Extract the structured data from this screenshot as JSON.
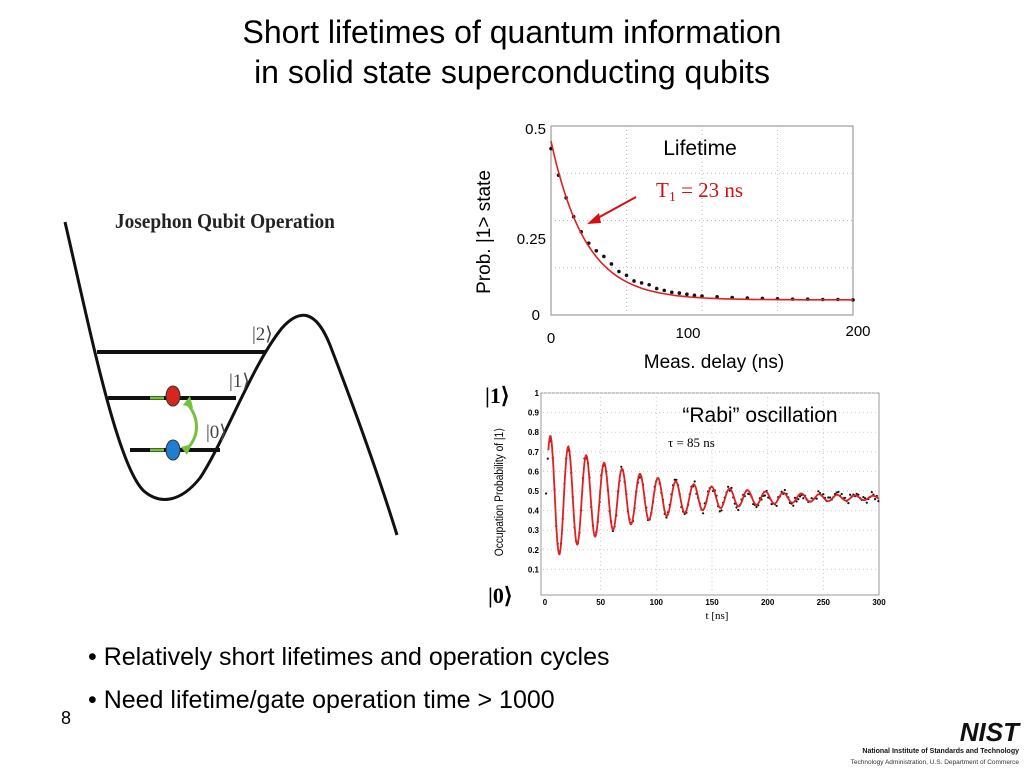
{
  "slide": {
    "title_line1": "Short lifetimes of quantum information",
    "title_line2": "in solid state superconducting qubits",
    "bullets": [
      "• Relatively short lifetimes and operation cycles",
      "• Need lifetime/gate operation time > 1000"
    ],
    "page_number": "8"
  },
  "diagram": {
    "title": "Josephon Qubit Operation",
    "levels": [
      "|2⟩",
      "|1⟩",
      "|0⟩"
    ],
    "colors": {
      "excited": "#d7261c",
      "ground": "#1e7fd0",
      "arrow": "#78c03c"
    }
  },
  "chart_data": [
    {
      "type": "scatter",
      "title": "Lifetime",
      "annotation": "T",
      "annotation_sub": "1",
      "annotation_rest": " = 23 ns",
      "annotation_color": "#d01010",
      "xlabel": "Meas. delay (ns)",
      "ylabel": "Prob. |1> state",
      "xlim": [
        0,
        200
      ],
      "ylim": [
        0,
        0.5
      ],
      "xticks": [
        "0",
        "100",
        "200"
      ],
      "yticks": [
        "0",
        "0.25",
        "0.5"
      ],
      "fit": {
        "model": "exponential_decay",
        "amplitude": 0.42,
        "offset": 0.04,
        "tau": 23,
        "color": "#e02020"
      },
      "series": [
        {
          "x": [
            0,
            5,
            10,
            15,
            20,
            25,
            30,
            35,
            40,
            45,
            50,
            55,
            60,
            65,
            70,
            75,
            80,
            85,
            90,
            95,
            100,
            110,
            120,
            130,
            140,
            150,
            160,
            170,
            180,
            190,
            200
          ],
          "y": [
            0.44,
            0.37,
            0.31,
            0.26,
            0.22,
            0.19,
            0.17,
            0.155,
            0.135,
            0.115,
            0.105,
            0.09,
            0.085,
            0.08,
            0.07,
            0.065,
            0.06,
            0.058,
            0.055,
            0.052,
            0.05,
            0.048,
            0.046,
            0.045,
            0.044,
            0.043,
            0.042,
            0.042,
            0.041,
            0.041,
            0.04
          ]
        }
      ],
      "grid": "dotted"
    },
    {
      "type": "line",
      "title": "“Rabi” oscillation",
      "annotation": "τ = 85 ns",
      "xlabel": "t [ns]",
      "ylabel": "Occupation Probability of |1⟩",
      "xlim": [
        0,
        300
      ],
      "ylim": [
        0,
        1
      ],
      "xticks": [
        "0",
        "50",
        "100",
        "150",
        "200",
        "250",
        "300"
      ],
      "yticks": [
        "0.1",
        "0.2",
        "0.3",
        "0.4",
        "0.5",
        "0.6",
        "0.7",
        "0.8",
        "0.9",
        "1"
      ],
      "state_labels": [
        "|1⟩",
        "|0⟩"
      ],
      "fit": {
        "model": "damped_cosine",
        "offset": 0.465,
        "amplitude": 0.335,
        "period": 16.1,
        "tau": 85,
        "color": "#e02020"
      },
      "grid": "dotted"
    }
  ],
  "logo": {
    "name": "NIST",
    "line1": "National Institute of Standards and Technology",
    "line2": "Technology Administration, U.S. Department of Commerce"
  }
}
